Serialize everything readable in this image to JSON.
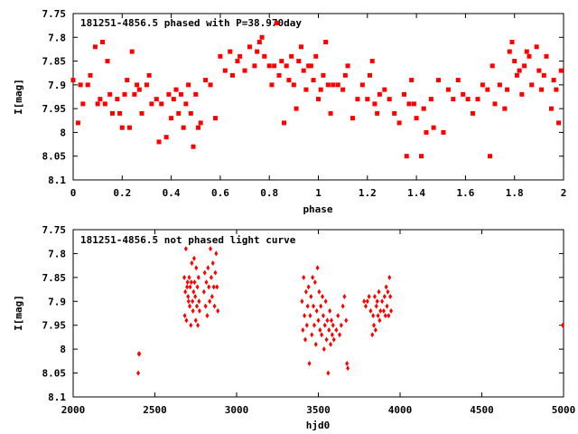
{
  "colors": {
    "marker": "#ff0000",
    "frame": "#000000",
    "background": "#ffffff"
  },
  "chart_data": [
    {
      "type": "scatter",
      "title": "181251-4856.5 phased with P=38.970day",
      "xlabel": "phase",
      "ylabel": "I[mag]",
      "xlim": [
        0,
        2
      ],
      "ylim": [
        8.1,
        7.75
      ],
      "y_inverted": true,
      "grid": false,
      "legend": "none",
      "marker": "square",
      "x_ticks": [
        "0",
        "0.2",
        "0.4",
        "0.6",
        "0.8",
        "1",
        "1.2",
        "1.4",
        "1.6",
        "1.8",
        "2"
      ],
      "y_ticks": [
        "7.75",
        "7.8",
        "7.85",
        "7.9",
        "7.95",
        "8",
        "8.05",
        "8.1"
      ],
      "points": [
        [
          0.0,
          7.89
        ],
        [
          0.02,
          7.98
        ],
        [
          0.03,
          7.9
        ],
        [
          0.04,
          7.94
        ],
        [
          0.06,
          7.9
        ],
        [
          0.07,
          7.88
        ],
        [
          0.09,
          7.82
        ],
        [
          0.1,
          7.94
        ],
        [
          0.11,
          7.93
        ],
        [
          0.12,
          7.81
        ],
        [
          0.13,
          7.94
        ],
        [
          0.14,
          7.85
        ],
        [
          0.15,
          7.92
        ],
        [
          0.16,
          7.96
        ],
        [
          0.18,
          7.93
        ],
        [
          0.19,
          7.96
        ],
        [
          0.2,
          7.99
        ],
        [
          0.21,
          7.92
        ],
        [
          0.22,
          7.89
        ],
        [
          0.23,
          7.99
        ],
        [
          0.24,
          7.83
        ],
        [
          0.25,
          7.92
        ],
        [
          0.26,
          7.9
        ],
        [
          0.27,
          7.91
        ],
        [
          0.28,
          7.96
        ],
        [
          0.3,
          7.9
        ],
        [
          0.31,
          7.88
        ],
        [
          0.32,
          7.94
        ],
        [
          0.34,
          7.93
        ],
        [
          0.35,
          8.02
        ],
        [
          0.36,
          7.94
        ],
        [
          0.38,
          8.01
        ],
        [
          0.39,
          7.92
        ],
        [
          0.4,
          7.97
        ],
        [
          0.41,
          7.93
        ],
        [
          0.42,
          7.91
        ],
        [
          0.43,
          7.96
        ],
        [
          0.44,
          7.92
        ],
        [
          0.45,
          7.99
        ],
        [
          0.46,
          7.94
        ],
        [
          0.47,
          7.9
        ],
        [
          0.48,
          7.96
        ],
        [
          0.49,
          8.03
        ],
        [
          0.5,
          7.92
        ],
        [
          0.51,
          7.99
        ],
        [
          0.52,
          7.98
        ],
        [
          0.54,
          7.89
        ],
        [
          0.56,
          7.9
        ],
        [
          0.58,
          7.97
        ],
        [
          0.6,
          7.84
        ],
        [
          0.62,
          7.87
        ],
        [
          0.64,
          7.83
        ],
        [
          0.65,
          7.88
        ],
        [
          0.67,
          7.85
        ],
        [
          0.68,
          7.84
        ],
        [
          0.7,
          7.87
        ],
        [
          0.72,
          7.82
        ],
        [
          0.74,
          7.86
        ],
        [
          0.75,
          7.83
        ],
        [
          0.76,
          7.81
        ],
        [
          0.77,
          7.8
        ],
        [
          0.78,
          7.84
        ],
        [
          0.8,
          7.86
        ],
        [
          0.81,
          7.9
        ],
        [
          0.82,
          7.86
        ],
        [
          0.83,
          7.77
        ],
        [
          0.84,
          7.88
        ],
        [
          0.85,
          7.85
        ],
        [
          0.86,
          7.98
        ],
        [
          0.87,
          7.86
        ],
        [
          0.88,
          7.89
        ],
        [
          0.89,
          7.84
        ],
        [
          0.9,
          7.9
        ],
        [
          0.91,
          7.95
        ],
        [
          0.92,
          7.85
        ],
        [
          0.93,
          7.82
        ],
        [
          0.94,
          7.87
        ],
        [
          0.95,
          7.91
        ],
        [
          0.96,
          7.86
        ],
        [
          0.97,
          7.86
        ],
        [
          0.98,
          7.89
        ],
        [
          0.99,
          7.84
        ],
        [
          1.0,
          7.93
        ],
        [
          1.01,
          7.91
        ],
        [
          1.02,
          7.88
        ],
        [
          1.03,
          7.81
        ],
        [
          1.04,
          7.9
        ],
        [
          1.05,
          7.96
        ],
        [
          1.06,
          7.9
        ],
        [
          1.08,
          7.9
        ],
        [
          1.1,
          7.91
        ],
        [
          1.11,
          7.88
        ],
        [
          1.12,
          7.86
        ],
        [
          1.14,
          7.97
        ],
        [
          1.16,
          7.93
        ],
        [
          1.18,
          7.9
        ],
        [
          1.2,
          7.93
        ],
        [
          1.21,
          7.88
        ],
        [
          1.22,
          7.85
        ],
        [
          1.23,
          7.94
        ],
        [
          1.24,
          7.96
        ],
        [
          1.25,
          7.92
        ],
        [
          1.27,
          7.91
        ],
        [
          1.29,
          7.93
        ],
        [
          1.31,
          7.96
        ],
        [
          1.33,
          7.98
        ],
        [
          1.35,
          7.92
        ],
        [
          1.36,
          8.05
        ],
        [
          1.37,
          7.94
        ],
        [
          1.38,
          7.89
        ],
        [
          1.39,
          7.94
        ],
        [
          1.4,
          7.97
        ],
        [
          1.42,
          8.05
        ],
        [
          1.43,
          7.95
        ],
        [
          1.44,
          8.0
        ],
        [
          1.46,
          7.93
        ],
        [
          1.47,
          7.99
        ],
        [
          1.49,
          7.89
        ],
        [
          1.51,
          8.0
        ],
        [
          1.53,
          7.91
        ],
        [
          1.55,
          7.93
        ],
        [
          1.57,
          7.89
        ],
        [
          1.59,
          7.92
        ],
        [
          1.61,
          7.93
        ],
        [
          1.63,
          7.96
        ],
        [
          1.65,
          7.93
        ],
        [
          1.67,
          7.9
        ],
        [
          1.69,
          7.91
        ],
        [
          1.7,
          8.05
        ],
        [
          1.71,
          7.86
        ],
        [
          1.72,
          7.94
        ],
        [
          1.74,
          7.9
        ],
        [
          1.76,
          7.95
        ],
        [
          1.77,
          7.91
        ],
        [
          1.78,
          7.83
        ],
        [
          1.79,
          7.81
        ],
        [
          1.8,
          7.85
        ],
        [
          1.81,
          7.88
        ],
        [
          1.82,
          7.87
        ],
        [
          1.83,
          7.92
        ],
        [
          1.84,
          7.86
        ],
        [
          1.85,
          7.83
        ],
        [
          1.86,
          7.84
        ],
        [
          1.87,
          7.9
        ],
        [
          1.89,
          7.82
        ],
        [
          1.9,
          7.87
        ],
        [
          1.91,
          7.91
        ],
        [
          1.92,
          7.88
        ],
        [
          1.93,
          7.84
        ],
        [
          1.95,
          7.95
        ],
        [
          1.96,
          7.89
        ],
        [
          1.97,
          7.91
        ],
        [
          1.98,
          7.98
        ],
        [
          1.99,
          7.87
        ]
      ]
    },
    {
      "type": "scatter",
      "title": "181251-4856.5 not phased light curve",
      "xlabel": "hjd0",
      "ylabel": "I[mag]",
      "xlim": [
        2000,
        5000
      ],
      "ylim": [
        8.1,
        7.75
      ],
      "y_inverted": true,
      "grid": false,
      "legend": "none",
      "marker": "diamond",
      "x_ticks": [
        "2000",
        "2500",
        "3000",
        "3500",
        "4000",
        "4500",
        "5000"
      ],
      "y_ticks": [
        "7.75",
        "7.8",
        "7.85",
        "7.9",
        "7.95",
        "8",
        "8.05",
        "8.1"
      ],
      "points": [
        [
          2398,
          8.05
        ],
        [
          2402,
          8.01
        ],
        [
          2405,
          8.01
        ],
        [
          2680,
          7.85
        ],
        [
          2683,
          7.93
        ],
        [
          2686,
          7.88
        ],
        [
          2690,
          7.79
        ],
        [
          2693,
          7.94
        ],
        [
          2697,
          7.87
        ],
        [
          2700,
          7.86
        ],
        [
          2703,
          7.89
        ],
        [
          2706,
          7.9
        ],
        [
          2710,
          7.85
        ],
        [
          2713,
          7.91
        ],
        [
          2716,
          7.87
        ],
        [
          2720,
          7.95
        ],
        [
          2723,
          7.86
        ],
        [
          2726,
          7.82
        ],
        [
          2730,
          7.9
        ],
        [
          2733,
          7.92
        ],
        [
          2737,
          7.88
        ],
        [
          2740,
          7.81
        ],
        [
          2743,
          7.86
        ],
        [
          2747,
          7.89
        ],
        [
          2750,
          7.94
        ],
        [
          2753,
          7.83
        ],
        [
          2757,
          7.91
        ],
        [
          2760,
          7.87
        ],
        [
          2763,
          7.95
        ],
        [
          2767,
          7.85
        ],
        [
          2770,
          7.9
        ],
        [
          2773,
          7.92
        ],
        [
          2800,
          7.88
        ],
        [
          2805,
          7.84
        ],
        [
          2810,
          7.91
        ],
        [
          2815,
          7.86
        ],
        [
          2820,
          7.93
        ],
        [
          2825,
          7.83
        ],
        [
          2830,
          7.87
        ],
        [
          2835,
          7.9
        ],
        [
          2840,
          7.79
        ],
        [
          2845,
          7.85
        ],
        [
          2850,
          7.89
        ],
        [
          2855,
          7.82
        ],
        [
          2860,
          7.87
        ],
        [
          2865,
          7.91
        ],
        [
          2870,
          7.84
        ],
        [
          2875,
          7.8
        ],
        [
          2880,
          7.87
        ],
        [
          2885,
          7.92
        ],
        [
          3400,
          7.9
        ],
        [
          3405,
          7.96
        ],
        [
          3410,
          7.85
        ],
        [
          3415,
          7.93
        ],
        [
          3420,
          7.98
        ],
        [
          3425,
          7.88
        ],
        [
          3430,
          7.95
        ],
        [
          3435,
          7.91
        ],
        [
          3440,
          7.87
        ],
        [
          3445,
          8.03
        ],
        [
          3450,
          7.93
        ],
        [
          3455,
          7.89
        ],
        [
          3460,
          7.97
        ],
        [
          3465,
          7.85
        ],
        [
          3470,
          7.91
        ],
        [
          3475,
          7.95
        ],
        [
          3480,
          7.86
        ],
        [
          3485,
          7.99
        ],
        [
          3490,
          7.92
        ],
        [
          3495,
          7.83
        ],
        [
          3500,
          7.94
        ],
        [
          3505,
          7.88
        ],
        [
          3510,
          7.96
        ],
        [
          3515,
          7.91
        ],
        [
          3520,
          7.97
        ],
        [
          3525,
          7.89
        ],
        [
          3530,
          7.93
        ],
        [
          3535,
          8.0
        ],
        [
          3540,
          7.95
        ],
        [
          3545,
          7.9
        ],
        [
          3550,
          7.98
        ],
        [
          3555,
          7.94
        ],
        [
          3560,
          8.05
        ],
        [
          3565,
          7.96
        ],
        [
          3570,
          7.92
        ],
        [
          3575,
          7.99
        ],
        [
          3580,
          7.94
        ],
        [
          3585,
          7.97
        ],
        [
          3590,
          7.95
        ],
        [
          3595,
          7.98
        ],
        [
          3610,
          7.96
        ],
        [
          3620,
          7.93
        ],
        [
          3630,
          7.97
        ],
        [
          3640,
          7.95
        ],
        [
          3650,
          7.91
        ],
        [
          3660,
          7.89
        ],
        [
          3670,
          7.94
        ],
        [
          3675,
          8.03
        ],
        [
          3680,
          8.04
        ],
        [
          3780,
          7.9
        ],
        [
          3790,
          7.91
        ],
        [
          3800,
          7.9
        ],
        [
          3810,
          7.89
        ],
        [
          3820,
          7.92
        ],
        [
          3830,
          7.97
        ],
        [
          3835,
          7.93
        ],
        [
          3840,
          7.95
        ],
        [
          3845,
          7.89
        ],
        [
          3850,
          7.96
        ],
        [
          3855,
          7.91
        ],
        [
          3860,
          7.9
        ],
        [
          3865,
          7.93
        ],
        [
          3870,
          7.88
        ],
        [
          3875,
          7.94
        ],
        [
          3880,
          7.92
        ],
        [
          3890,
          7.9
        ],
        [
          3900,
          7.92
        ],
        [
          3905,
          7.89
        ],
        [
          3910,
          7.93
        ],
        [
          3915,
          7.87
        ],
        [
          3920,
          7.91
        ],
        [
          3925,
          7.88
        ],
        [
          3930,
          7.93
        ],
        [
          3935,
          7.85
        ],
        [
          3940,
          7.89
        ],
        [
          3945,
          7.92
        ],
        [
          4995,
          7.95
        ]
      ]
    }
  ]
}
